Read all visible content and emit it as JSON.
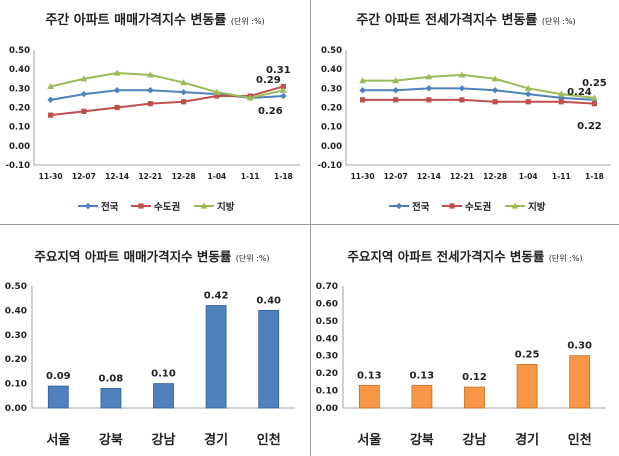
{
  "chart_data": [
    {
      "type": "line",
      "title": "주간 아파트 매매가격지수 변동률",
      "unit": "(단위 :%)",
      "categories": [
        "11-30",
        "12-07",
        "12-14",
        "12-21",
        "12-28",
        "1-04",
        "1-11",
        "1-18"
      ],
      "ylim": [
        -0.1,
        0.5
      ],
      "yticks": [
        "0.50",
        "0.40",
        "0.30",
        "0.20",
        "0.10",
        "0.00",
        "-0.10"
      ],
      "grid": false,
      "legend": "bottom",
      "series": [
        {
          "name": "전국",
          "color": "#4f81bd",
          "values": [
            0.24,
            0.27,
            0.29,
            0.29,
            0.28,
            0.27,
            0.25,
            0.26
          ]
        },
        {
          "name": "수도권",
          "color": "#c0504d",
          "values": [
            0.16,
            0.18,
            0.2,
            0.22,
            0.23,
            0.26,
            0.26,
            0.31
          ]
        },
        {
          "name": "지방",
          "color": "#9bbb59",
          "values": [
            0.31,
            0.35,
            0.38,
            0.37,
            0.33,
            0.28,
            0.25,
            0.29
          ]
        }
      ],
      "annotations": [
        "0.31",
        "0.29",
        "0.26"
      ]
    },
    {
      "type": "line",
      "title": "주간 아파트 전세가격지수 변동률",
      "unit": "(단위 :%)",
      "categories": [
        "11-30",
        "12-07",
        "12-14",
        "12-21",
        "12-28",
        "1-04",
        "1-11",
        "1-18"
      ],
      "ylim": [
        -0.1,
        0.5
      ],
      "yticks": [
        "0.50",
        "0.40",
        "0.30",
        "0.20",
        "0.10",
        "0.00",
        "-0.10"
      ],
      "grid": false,
      "legend": "bottom",
      "series": [
        {
          "name": "전국",
          "color": "#4f81bd",
          "values": [
            0.29,
            0.29,
            0.3,
            0.3,
            0.29,
            0.27,
            0.25,
            0.24
          ]
        },
        {
          "name": "수도권",
          "color": "#c0504d",
          "values": [
            0.24,
            0.24,
            0.24,
            0.24,
            0.23,
            0.23,
            0.23,
            0.22
          ]
        },
        {
          "name": "지방",
          "color": "#9bbb59",
          "values": [
            0.34,
            0.34,
            0.36,
            0.37,
            0.35,
            0.3,
            0.27,
            0.25
          ]
        }
      ],
      "annotations": [
        "0.25",
        "0.24",
        "0.22"
      ]
    },
    {
      "type": "bar",
      "title": "주요지역 아파트 매매가격지수 변동률",
      "unit": "(단위 :%)",
      "categories": [
        "서울",
        "강북",
        "강남",
        "경기",
        "인천"
      ],
      "values": [
        0.09,
        0.08,
        0.1,
        0.42,
        0.4
      ],
      "labels": [
        "0.09",
        "0.08",
        "0.10",
        "0.42",
        "0.40"
      ],
      "ylim": [
        0,
        0.5
      ],
      "yticks": [
        "0.50",
        "0.40",
        "0.30",
        "0.20",
        "0.10",
        "0.00"
      ],
      "color": "#4f81bd"
    },
    {
      "type": "bar",
      "title": "주요지역 아파트 전세가격지수 변동률",
      "unit": "(단위 :%)",
      "categories": [
        "서울",
        "강북",
        "강남",
        "경기",
        "인천"
      ],
      "values": [
        0.13,
        0.13,
        0.12,
        0.25,
        0.3
      ],
      "labels": [
        "0.13",
        "0.13",
        "0.12",
        "0.25",
        "0.30"
      ],
      "ylim": [
        0,
        0.7
      ],
      "yticks": [
        "0.70",
        "0.60",
        "0.50",
        "0.40",
        "0.30",
        "0.20",
        "0.10",
        "0.00"
      ],
      "color": "#f79646"
    }
  ]
}
